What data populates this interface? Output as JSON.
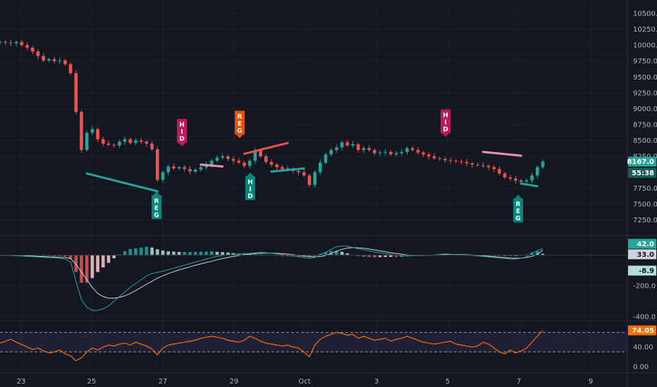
{
  "chart_data": [
    {
      "type": "candlestick",
      "pane": "price",
      "ylim": [
        7100,
        10600
      ],
      "x_ticks": [
        "23",
        "25",
        "27",
        "29",
        "Oct",
        "3",
        "5",
        "7",
        "9"
      ],
      "y_ticks": [
        "10500.0",
        "10250.0",
        "10000.0",
        "9750.0",
        "9500.0",
        "9250.0",
        "9000.0",
        "8750.0",
        "8500.0",
        "8250.0",
        "7750.0",
        "7500.0",
        "7250.0"
      ],
      "series": [
        {
          "values": [
            10050,
            10040,
            10030,
            10050,
            10000,
            9960,
            9900,
            9830,
            9760,
            9780,
            9750,
            9760,
            9700,
            9560,
            8950,
            8350,
            8620,
            8680,
            8520,
            8450,
            8430,
            8420,
            8480,
            8520,
            8460,
            8500,
            8480,
            8450,
            8360,
            7880,
            8000,
            8090,
            8060,
            8080,
            8050,
            8010,
            8040,
            8080,
            8120,
            8180,
            8230,
            8250,
            8210,
            8180,
            8150,
            8100,
            8180,
            8340,
            8250,
            8160,
            8120,
            8080,
            8050,
            8060,
            8020,
            8000,
            7950,
            7800,
            8000,
            8150,
            8280,
            8350,
            8390,
            8470,
            8420,
            8440,
            8350,
            8380,
            8350,
            8300,
            8310,
            8320,
            8280,
            8300,
            8320,
            8380,
            8350,
            8310,
            8280,
            8250,
            8220,
            8210,
            8190,
            8180,
            8170,
            8160,
            8140,
            8120,
            8110,
            8100,
            8080,
            8050,
            7980,
            7920,
            7900,
            7870,
            7850,
            7870,
            7950,
            8080,
            8167
          ]
        }
      ],
      "last_price": "8167.0",
      "countdown": "55:38",
      "divergence_labels": [
        {
          "text": "HID",
          "kind": "bearish"
        },
        {
          "text": "REG",
          "kind": "bearish"
        },
        {
          "text": "HID",
          "kind": "bearish"
        },
        {
          "text": "REG",
          "kind": "bullish"
        },
        {
          "text": "HID",
          "kind": "bullish"
        },
        {
          "text": "REG",
          "kind": "bullish"
        }
      ]
    },
    {
      "type": "macd",
      "pane": "macd",
      "ylim": [
        -410,
        90
      ],
      "y_ticks": [
        "-200.0",
        "-400.0"
      ],
      "badges": [
        "42.0",
        "33.0",
        "-8.9"
      ],
      "macd": [
        0,
        0,
        -2,
        -4,
        -5,
        -8,
        -10,
        -12,
        -14,
        -16,
        -18,
        -20,
        -25,
        -45,
        -170,
        -290,
        -340,
        -360,
        -360,
        -350,
        -330,
        -300,
        -270,
        -240,
        -210,
        -185,
        -160,
        -135,
        -120,
        -112,
        -105,
        -95,
        -85,
        -75,
        -65,
        -55,
        -45,
        -35,
        -25,
        -15,
        -8,
        -2,
        2,
        5,
        8,
        10,
        12,
        15,
        18,
        16,
        12,
        8,
        4,
        0,
        -5,
        -10,
        -15,
        -20,
        -15,
        0,
        18,
        38,
        55,
        60,
        58,
        50,
        42,
        35,
        28,
        20,
        15,
        10,
        5,
        0,
        -3,
        -5,
        -4,
        -3,
        -2,
        0,
        2,
        5,
        8,
        6,
        4,
        2,
        0,
        -2,
        -5,
        -8,
        -12,
        -15,
        -18,
        -22,
        -25,
        -25,
        -20,
        -10,
        10,
        30,
        42
      ],
      "signal": [
        0,
        0,
        -1,
        -2,
        -3,
        -4,
        -6,
        -8,
        -9,
        -11,
        -12,
        -14,
        -16,
        -22,
        -60,
        -110,
        -160,
        -210,
        -250,
        -270,
        -280,
        -280,
        -275,
        -265,
        -250,
        -230,
        -210,
        -190,
        -170,
        -150,
        -135,
        -120,
        -108,
        -96,
        -86,
        -76,
        -66,
        -57,
        -48,
        -40,
        -30,
        -22,
        -15,
        -8,
        -2,
        3,
        7,
        10,
        13,
        14,
        13,
        12,
        10,
        7,
        3,
        -1,
        -5,
        -9,
        -11,
        -9,
        -2,
        10,
        25,
        38,
        46,
        49,
        48,
        45,
        40,
        34,
        28,
        22,
        16,
        11,
        6,
        2,
        0,
        -1,
        -1,
        -1,
        0,
        2,
        4,
        5,
        5,
        4,
        3,
        1,
        -1,
        -4,
        -7,
        -10,
        -13,
        -16,
        -19,
        -20,
        -19,
        -15,
        -8,
        5,
        33
      ]
    },
    {
      "type": "line",
      "pane": "rsi",
      "ylim": [
        -10,
        82
      ],
      "y_ticks": [
        "40.00",
        "0.00"
      ],
      "badge": "74.05",
      "values": [
        48,
        52,
        56,
        50,
        45,
        40,
        35,
        38,
        32,
        28,
        30,
        34,
        26,
        22,
        12,
        18,
        30,
        38,
        34,
        40,
        44,
        42,
        46,
        48,
        44,
        50,
        46,
        42,
        36,
        24,
        38,
        44,
        46,
        48,
        50,
        52,
        54,
        58,
        60,
        62,
        60,
        58,
        54,
        52,
        50,
        54,
        62,
        58,
        52,
        48,
        46,
        44,
        42,
        44,
        40,
        38,
        30,
        20,
        44,
        56,
        62,
        66,
        70,
        68,
        64,
        66,
        58,
        62,
        58,
        54,
        56,
        58,
        52,
        56,
        58,
        62,
        58,
        54,
        50,
        48,
        46,
        48,
        50,
        52,
        46,
        44,
        42,
        40,
        42,
        50,
        46,
        38,
        30,
        26,
        34,
        28,
        32,
        38,
        50,
        62,
        74
      ]
    }
  ]
}
